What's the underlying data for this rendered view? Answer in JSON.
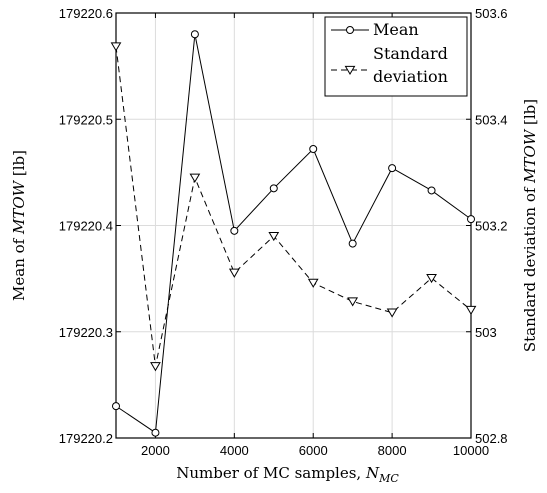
{
  "chart_data": {
    "type": "line",
    "x": [
      1000,
      2000,
      3000,
      4000,
      5000,
      6000,
      7000,
      8000,
      9000,
      10000
    ],
    "xlim": [
      1000,
      10000
    ],
    "x_ticks": [
      2000,
      4000,
      6000,
      8000,
      10000
    ],
    "xlabel": {
      "text": "Number of MC samples, ",
      "var": "N",
      "sub": "MC"
    },
    "ylabel_left": {
      "prefix": "Mean of ",
      "var": "MTOW",
      "suffix": " [lb]"
    },
    "ylabel_right": {
      "prefix": "Standard deviation of ",
      "var": "MTOW",
      "suffix": " [lb]"
    },
    "ylim_left": [
      179220.2,
      179220.6
    ],
    "y_ticks_left": [
      "179220.2",
      "179220.3",
      "179220.4",
      "179220.5",
      "179220.6"
    ],
    "ylim_right": [
      502.8,
      503.6
    ],
    "y_ticks_right": [
      "502.8",
      "503",
      "503.2",
      "503.4",
      "503.6"
    ],
    "grid": true,
    "legend_position": "top-right",
    "series": [
      {
        "name": "Mean",
        "axis": "left",
        "style": "solid",
        "marker": "circle",
        "color": "#000000",
        "values": [
          179220.23,
          179220.205,
          179220.58,
          179220.395,
          179220.435,
          179220.472,
          179220.383,
          179220.454,
          179220.433,
          179220.406
        ]
      },
      {
        "name": "Standard deviation",
        "name_lines": [
          "Standard",
          "deviation"
        ],
        "axis": "right",
        "style": "dashed",
        "marker": "triangle-down",
        "color": "#000000",
        "values": [
          503.537,
          502.935,
          503.29,
          503.111,
          503.18,
          503.092,
          503.057,
          503.036,
          503.101,
          503.041
        ]
      }
    ]
  }
}
